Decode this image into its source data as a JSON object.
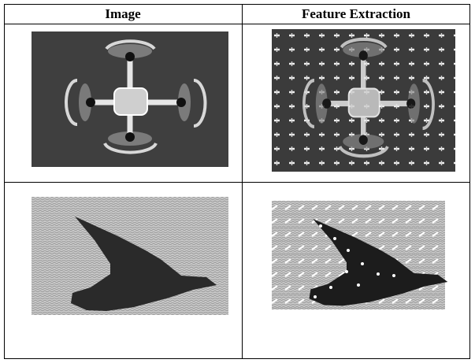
{
  "table": {
    "header": [
      "Image",
      "Feature Extraction"
    ]
  }
}
